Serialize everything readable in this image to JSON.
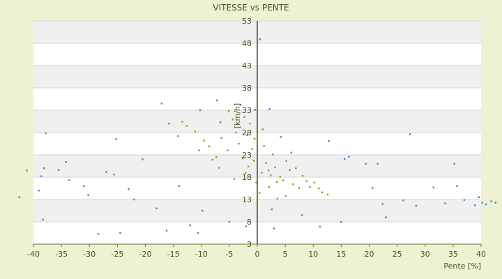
{
  "chart_data": {
    "type": "scatter",
    "title": "VITESSE vs PENTE",
    "xlabel": "Pente [%]",
    "ylabel": "[km/h]",
    "xlim": [
      -40,
      40
    ],
    "ylim": [
      3,
      53
    ],
    "xticks": [
      -40,
      -35,
      -30,
      -25,
      -20,
      -15,
      -10,
      -5,
      0,
      5,
      10,
      15,
      20,
      25,
      30,
      35,
      40
    ],
    "yticks": [
      3,
      8,
      13,
      18,
      23,
      28,
      33,
      38,
      43,
      48,
      53
    ],
    "grid": true,
    "legend": "none",
    "series": [
      {
        "color": "#3b86d6",
        "points": [
          [
            -37.8,
            27.8
          ],
          [
            -38.6,
            18.2
          ],
          [
            -38.1,
            20.0
          ],
          [
            -41.2,
            19.5
          ],
          [
            -42.5,
            13.5
          ],
          [
            -39.0,
            15.0
          ],
          [
            -38.3,
            8.5
          ],
          [
            -35.5,
            19.6
          ],
          [
            -34.2,
            21.4
          ],
          [
            -33.6,
            17.3
          ],
          [
            -31.0,
            16.0
          ],
          [
            -30.2,
            14.0
          ],
          [
            -28.4,
            5.3
          ],
          [
            -27.0,
            19.2
          ],
          [
            -25.6,
            18.6
          ],
          [
            -25.2,
            26.5
          ],
          [
            -24.5,
            5.5
          ],
          [
            -23.0,
            15.3
          ],
          [
            -20.5,
            22.0
          ],
          [
            -17.1,
            34.5
          ],
          [
            -16.2,
            6.0
          ],
          [
            -12.0,
            7.2
          ],
          [
            -10.6,
            5.5
          ],
          [
            -10.2,
            33.0
          ],
          [
            -9.8,
            10.5
          ],
          [
            -7.2,
            35.2
          ],
          [
            -6.6,
            30.3
          ],
          [
            -0.4,
            33.1
          ],
          [
            2.2,
            33.3
          ],
          [
            2.6,
            10.8
          ],
          [
            4.2,
            27.0
          ],
          [
            6.1,
            23.5
          ],
          [
            11.2,
            6.9
          ],
          [
            12.8,
            26.1
          ],
          [
            15.6,
            22.1
          ],
          [
            16.4,
            22.6
          ],
          [
            19.4,
            21.0
          ],
          [
            20.6,
            15.6
          ],
          [
            21.5,
            21.0
          ],
          [
            22.4,
            12.0
          ],
          [
            27.3,
            27.6
          ],
          [
            26.1,
            12.8
          ],
          [
            28.4,
            11.6
          ],
          [
            31.5,
            15.7
          ],
          [
            35.7,
            16.0
          ],
          [
            35.2,
            21.0
          ],
          [
            33.6,
            12.1
          ],
          [
            37.0,
            12.9
          ],
          [
            39.6,
            13.5
          ],
          [
            40.9,
            11.9
          ],
          [
            42.6,
            12.3
          ],
          [
            41.8,
            12.6
          ],
          [
            40.2,
            12.3
          ],
          [
            38.9,
            11.7
          ],
          [
            23.0,
            9.0
          ],
          [
            15.0,
            8.0
          ],
          [
            -22.0,
            13.0
          ],
          [
            -18.0,
            11.0
          ],
          [
            -14.0,
            16.0
          ],
          [
            -2.0,
            7.0
          ],
          [
            3.0,
            6.5
          ],
          [
            -5.0,
            8.0
          ],
          [
            8.0,
            9.5
          ]
        ]
      },
      {
        "color": "#8f9a22",
        "points": [
          [
            -13.4,
            30.4
          ],
          [
            -12.6,
            29.5
          ],
          [
            -11.1,
            28.2
          ],
          [
            -9.5,
            26.2
          ],
          [
            -8.6,
            24.9
          ],
          [
            -7.3,
            22.5
          ],
          [
            -6.4,
            26.8
          ],
          [
            -5.3,
            24.0
          ],
          [
            -5.1,
            32.8
          ],
          [
            -4.4,
            30.9
          ],
          [
            -3.8,
            28.0
          ],
          [
            -3.3,
            25.5
          ],
          [
            -2.6,
            22.2
          ],
          [
            -1.6,
            20.4
          ],
          [
            -1.3,
            30.0
          ],
          [
            -1.8,
            27.4
          ],
          [
            -2.1,
            18.9
          ],
          [
            -0.9,
            24.3
          ],
          [
            -0.6,
            21.7
          ],
          [
            -0.2,
            16.8
          ],
          [
            0.4,
            14.5
          ],
          [
            1.2,
            25.0
          ],
          [
            1.6,
            21.2
          ],
          [
            2.0,
            19.5
          ],
          [
            2.4,
            18.4
          ],
          [
            2.8,
            23.1
          ],
          [
            3.2,
            20.2
          ],
          [
            3.5,
            16.9
          ],
          [
            4.1,
            18.1
          ],
          [
            4.6,
            17.3
          ],
          [
            5.2,
            21.6
          ],
          [
            5.8,
            19.6
          ],
          [
            6.4,
            16.4
          ],
          [
            6.9,
            20.0
          ],
          [
            7.5,
            15.6
          ],
          [
            8.1,
            18.3
          ],
          [
            8.8,
            17.1
          ],
          [
            9.4,
            15.8
          ],
          [
            10.2,
            16.8
          ],
          [
            11.0,
            15.5
          ],
          [
            11.6,
            14.6
          ],
          [
            12.6,
            14.1
          ],
          [
            -15.8,
            30.0
          ],
          [
            -14.2,
            27.2
          ],
          [
            -10.4,
            24.0
          ],
          [
            -3.0,
            34.2
          ],
          [
            -2.3,
            31.5
          ],
          [
            -0.5,
            26.6
          ],
          [
            1.0,
            28.7
          ],
          [
            3.6,
            13.2
          ],
          [
            5.1,
            13.8
          ],
          [
            -4.1,
            17.6
          ],
          [
            -6.8,
            20.1
          ],
          [
            -8.0,
            21.9
          ],
          [
            0.8,
            19.0
          ],
          [
            2.1,
            15.8
          ]
        ]
      },
      {
        "color": "#3b86d6",
        "note": "",
        "points": [
          [
            0.5,
            48.9
          ]
        ]
      }
    ]
  }
}
